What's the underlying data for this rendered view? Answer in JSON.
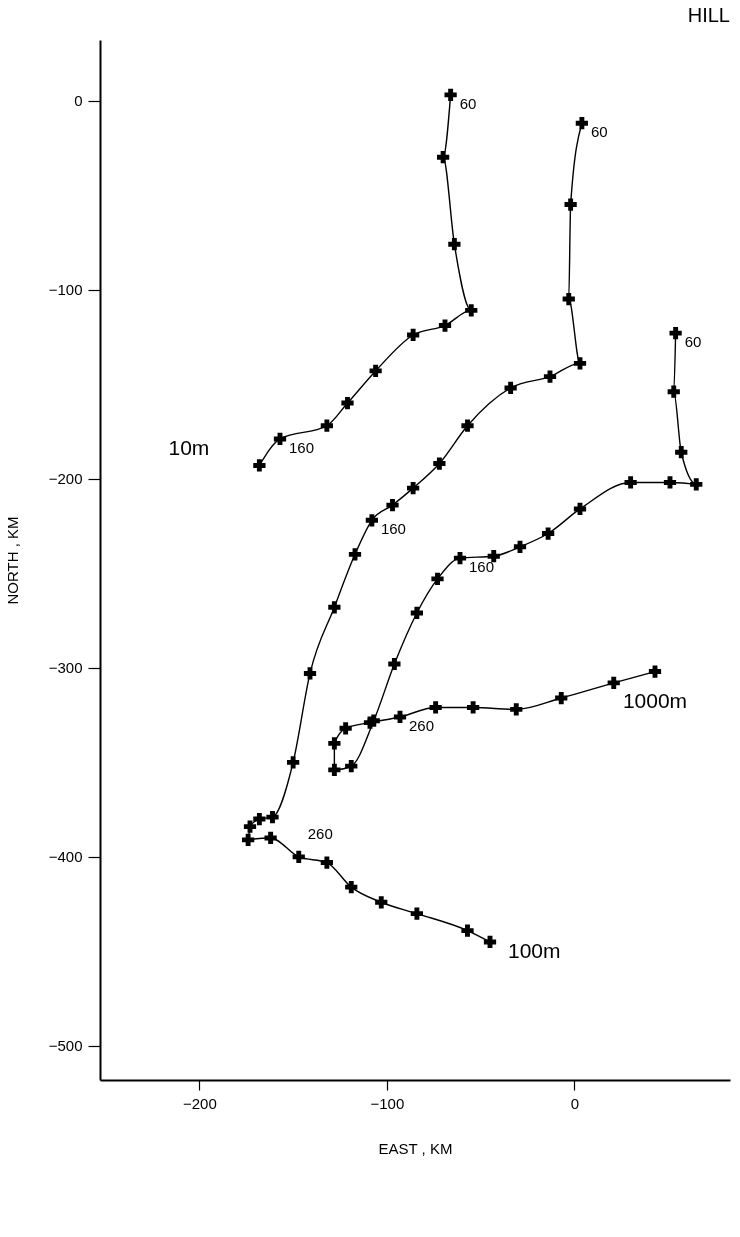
{
  "chart_data": {
    "type": "line",
    "title": "HILL",
    "xlabel": "EAST , KM",
    "ylabel": "NORTH , KM",
    "xlim": [
      -253,
      83
    ],
    "ylim": [
      -518,
      32
    ],
    "xticks": [
      -200,
      -100,
      0
    ],
    "yticks": [
      -500,
      -400,
      -300,
      -200,
      -100,
      0
    ],
    "grid": false,
    "marker": "cross",
    "line_style": "solid",
    "series": [
      {
        "name": "10m",
        "color": "#000000",
        "x": [
          -66,
          -70,
          -64,
          -55,
          -69,
          -86,
          -106,
          -121,
          -132,
          -157,
          -168
        ],
        "values": [
          3,
          -30,
          -76,
          -111,
          -119,
          -124,
          -143,
          -160,
          -172,
          -179,
          -193
        ]
      },
      {
        "name": "100m",
        "color": "#000000",
        "x": [
          4,
          -2,
          -3,
          3,
          -13,
          -34,
          -57,
          -72,
          -86,
          -97,
          -108,
          -117,
          -128,
          -141,
          -150,
          -161,
          -168,
          -173,
          -174,
          -162,
          -147,
          -132,
          -119,
          -103,
          -84,
          -57,
          -45
        ],
        "values": [
          -12,
          -55,
          -105,
          -139,
          -146,
          -152,
          -172,
          -192,
          -205,
          -214,
          -222,
          -240,
          -268,
          -303,
          -350,
          -379,
          -380,
          -384,
          -391,
          -390,
          -400,
          -403,
          -416,
          -424,
          -430,
          -439,
          -445
        ]
      },
      {
        "name": "1000m",
        "color": "#000000",
        "x": [
          54,
          53,
          57,
          65,
          51,
          30,
          3,
          -14,
          -29,
          -43,
          -61,
          -73,
          -84,
          -96,
          -107,
          -119,
          -128,
          -128,
          -122,
          -109,
          -93,
          -74,
          -54,
          -31,
          -7,
          21,
          43
        ],
        "values": [
          -123,
          -154,
          -186,
          -203,
          -202,
          -202,
          -216,
          -229,
          -236,
          -241,
          -242,
          -253,
          -271,
          -298,
          -328,
          -352,
          -354,
          -340,
          -332,
          -329,
          -326,
          -321,
          -321,
          -322,
          -316,
          -308,
          -302
        ]
      }
    ],
    "annotations": [
      {
        "text": "60",
        "x": -66,
        "y": 3
      },
      {
        "text": "60",
        "x": 4,
        "y": -12
      },
      {
        "text": "60",
        "x": 54,
        "y": -123
      },
      {
        "text": "160",
        "x": -157,
        "y": -179
      },
      {
        "text": "160",
        "x": -108,
        "y": -222
      },
      {
        "text": "160",
        "x": -61,
        "y": -242
      },
      {
        "text": "260",
        "x": -147,
        "y": -400
      },
      {
        "text": "260",
        "x": -93,
        "y": -326
      }
    ]
  }
}
